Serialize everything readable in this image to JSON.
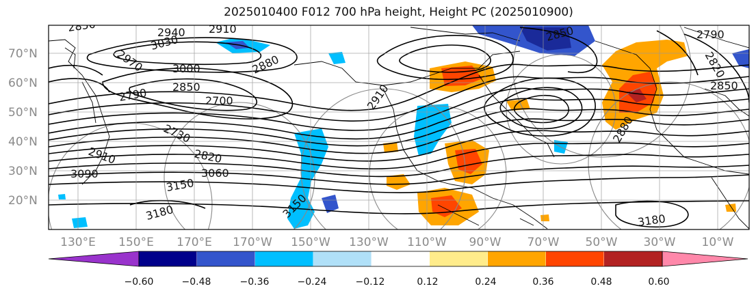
{
  "title": "2025010400 F012 700 hPa height, Height PC (2025010900)",
  "latitude_labels": [
    "70°N",
    "60°N",
    "50°N",
    "40°N",
    "30°N",
    "20°N"
  ],
  "longitude_labels": [
    "130°E",
    "150°E",
    "170°E",
    "170°W",
    "150°W",
    "130°W",
    "110°W",
    "90°W",
    "70°W",
    "50°W",
    "30°W",
    "10°W"
  ],
  "contour_labels": [
    "2850",
    "2940",
    "2910",
    "3030",
    "2970",
    "3000",
    "2880",
    "2850",
    "2790",
    "2700",
    "2730",
    "2820",
    "2910",
    "3090",
    "3150",
    "3060",
    "3180",
    "3150",
    "2910",
    "2850",
    "2790",
    "2820",
    "2850",
    "3180",
    "2880"
  ],
  "colorbar": {
    "colors": [
      "#9933cc",
      "#00008b",
      "#3355cc",
      "#00bfff",
      "#b0e0f8",
      "#ffffff",
      "#ffec8b",
      "#ffa500",
      "#ff4500",
      "#b22222",
      "#ff88aa"
    ],
    "tick_labels": [
      "−0.60",
      "−0.48",
      "−0.36",
      "−0.24",
      "−0.12",
      "0.12",
      "0.24",
      "0.36",
      "0.48",
      "0.60"
    ]
  }
}
